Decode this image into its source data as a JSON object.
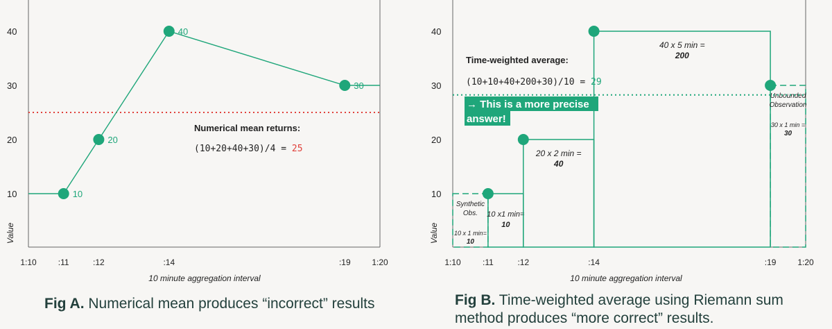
{
  "colors": {
    "accent": "#1fa67a",
    "mean_line": "#e0413b",
    "text": "#222222",
    "axis": "#555555",
    "caption": "#23403c"
  },
  "chart_data": [
    {
      "id": "fig-a",
      "type": "line",
      "x_ticks": [
        {
          "t": 0,
          "label": "1:10"
        },
        {
          "t": 1,
          "label": ":11"
        },
        {
          "t": 2,
          "label": ":12"
        },
        {
          "t": 4,
          "label": ":14"
        },
        {
          "t": 9,
          "label": ":19"
        },
        {
          "t": 10,
          "label": "1:20"
        }
      ],
      "y_ticks": [
        10,
        20,
        30,
        40
      ],
      "ylabel": "Value",
      "xlabel": "10 minute aggregation interval",
      "xlim": [
        0,
        10
      ],
      "points": [
        {
          "t": 1,
          "v": 10,
          "label": "10"
        },
        {
          "t": 2,
          "v": 20,
          "label": "20"
        },
        {
          "t": 4,
          "v": 40,
          "label": "40"
        },
        {
          "t": 9,
          "v": 30,
          "label": "30"
        }
      ],
      "line_extends": {
        "before_t": 0,
        "after_t": 10
      },
      "mean_value": 25,
      "annotation_title": "Numerical mean returns:",
      "formula": "(10+20+40+30)/4 = ",
      "result": "25",
      "caption_bold": "Fig A.",
      "caption_text": " Numerical mean produces “incorrect” results"
    },
    {
      "id": "fig-b",
      "type": "step",
      "x_ticks": [
        {
          "t": 0,
          "label": "1:10"
        },
        {
          "t": 1,
          "label": ":11"
        },
        {
          "t": 2,
          "label": ":12"
        },
        {
          "t": 4,
          "label": ":14"
        },
        {
          "t": 9,
          "label": ":19"
        },
        {
          "t": 10,
          "label": "1:20"
        }
      ],
      "y_ticks": [
        10,
        20,
        30,
        40
      ],
      "ylabel": "Value",
      "xlabel": "10 minute aggregation interval",
      "xlim": [
        0,
        10
      ],
      "points": [
        {
          "t": 1,
          "v": 10
        },
        {
          "t": 2,
          "v": 20
        },
        {
          "t": 4,
          "v": 40
        },
        {
          "t": 9,
          "v": 30
        }
      ],
      "twa_value": 29,
      "regions": [
        {
          "t0": 0,
          "t1": 1,
          "v": 10,
          "dashed": true,
          "lines": [
            "Synthetic",
            "Obs."
          ],
          "calc": "10 x 1 min=",
          "result": "10"
        },
        {
          "t0": 1,
          "t1": 2,
          "v": 10,
          "dashed": false,
          "lines": [],
          "calc": "10 x1 min=",
          "result": "10"
        },
        {
          "t0": 2,
          "t1": 4,
          "v": 20,
          "dashed": false,
          "lines": [],
          "calc": "20 x 2 min =",
          "result": "40"
        },
        {
          "t0": 4,
          "t1": 9,
          "v": 40,
          "dashed": false,
          "lines": [],
          "calc": "40 x 5 min =",
          "result": "200"
        },
        {
          "t0": 9,
          "t1": 10,
          "v": 30,
          "dashed": true,
          "lines": [
            "Unbounded",
            "Observation"
          ],
          "calc": "30 x 1 min =",
          "result": "30"
        }
      ],
      "annotation_title": "Time-weighted average:",
      "formula": "(10+10+40+200+30)/10 = ",
      "result": "29",
      "highlight_lines": [
        "→ This is a more precise",
        "answer!"
      ],
      "caption_bold": "Fig B.",
      "caption_line1": " Time-weighted average using Riemann sum",
      "caption_line2": "method produces “more correct” results."
    }
  ]
}
